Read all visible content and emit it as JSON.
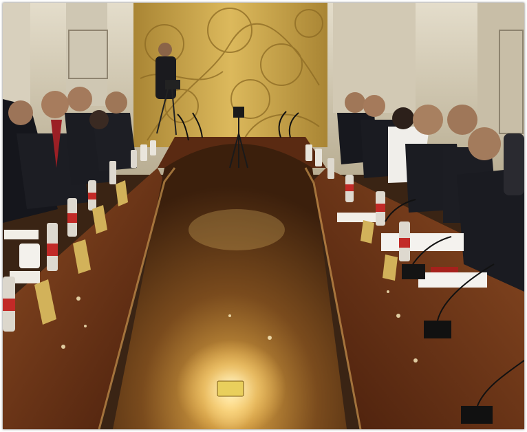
{
  "scene": {
    "subject": "",
    "colors": {
      "panel_gold": "#caa54a",
      "table_wood": "#6b3418",
      "suit_dark": "#1b1c22",
      "tablecloth_white": "#f1efe9",
      "wall_cream": "#d9d1bf"
    }
  }
}
